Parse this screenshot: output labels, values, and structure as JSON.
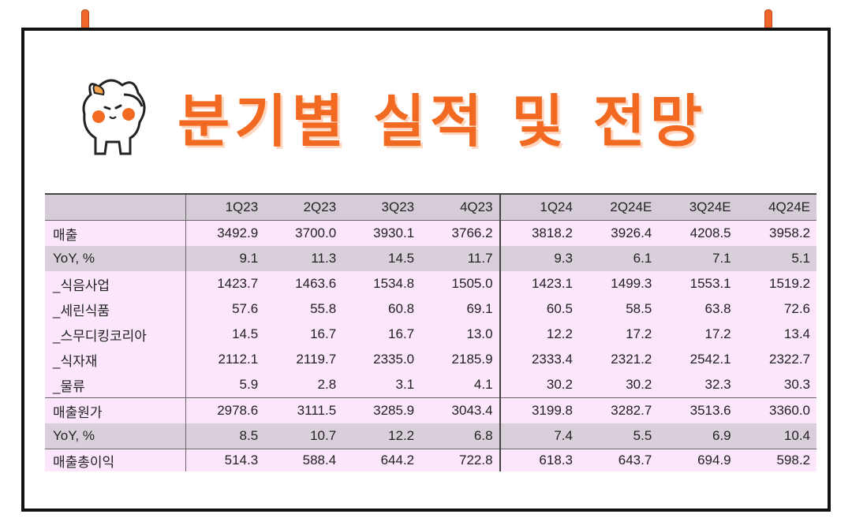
{
  "title": "분기별 실적 및 전망",
  "table": {
    "columns": [
      "",
      "1Q23",
      "2Q23",
      "3Q23",
      "4Q23",
      "1Q24",
      "2Q24E",
      "3Q24E",
      "4Q24E"
    ],
    "rows": [
      {
        "label": "매출",
        "values": [
          "3492.9",
          "3700.0",
          "3930.1",
          "3766.2",
          "3818.2",
          "3926.4",
          "4208.5",
          "3958.2"
        ]
      },
      {
        "label": "YoY, %",
        "values": [
          "9.1",
          "11.3",
          "14.5",
          "11.7",
          "9.3",
          "6.1",
          "7.1",
          "5.1"
        ]
      },
      {
        "label": "_식음사업",
        "values": [
          "1423.7",
          "1463.6",
          "1534.8",
          "1505.0",
          "1423.1",
          "1499.3",
          "1553.1",
          "1519.2"
        ]
      },
      {
        "label": "_세린식품",
        "values": [
          "57.6",
          "55.8",
          "60.8",
          "69.1",
          "60.5",
          "58.5",
          "63.8",
          "72.6"
        ]
      },
      {
        "label": "_스무디킹코리아",
        "values": [
          "14.5",
          "16.7",
          "16.7",
          "13.0",
          "12.2",
          "17.2",
          "17.2",
          "13.4"
        ]
      },
      {
        "label": "_식자재",
        "values": [
          "2112.1",
          "2119.7",
          "2335.0",
          "2185.9",
          "2333.4",
          "2321.2",
          "2542.1",
          "2322.7"
        ]
      },
      {
        "label": "_물류",
        "values": [
          "5.9",
          "2.8",
          "3.1",
          "4.1",
          "30.2",
          "30.2",
          "32.3",
          "30.3"
        ]
      },
      {
        "label": "매출원가",
        "values": [
          "2978.6",
          "3111.5",
          "3285.9",
          "3043.4",
          "3199.8",
          "3282.7",
          "3513.6",
          "3360.0"
        ]
      },
      {
        "label": "YoY, %",
        "values": [
          "8.5",
          "10.7",
          "12.2",
          "6.8",
          "7.4",
          "5.5",
          "6.9",
          "10.4"
        ]
      },
      {
        "label": "매출총이익",
        "values": [
          "514.3",
          "588.4",
          "644.2",
          "722.8",
          "618.3",
          "643.7",
          "694.9",
          "598.2"
        ]
      }
    ]
  },
  "colors": {
    "accent": "#f26a22",
    "header_bg": "#d6ccd8",
    "row_bg": "#fbe6fb",
    "shade_bg": "#d9cfda"
  }
}
